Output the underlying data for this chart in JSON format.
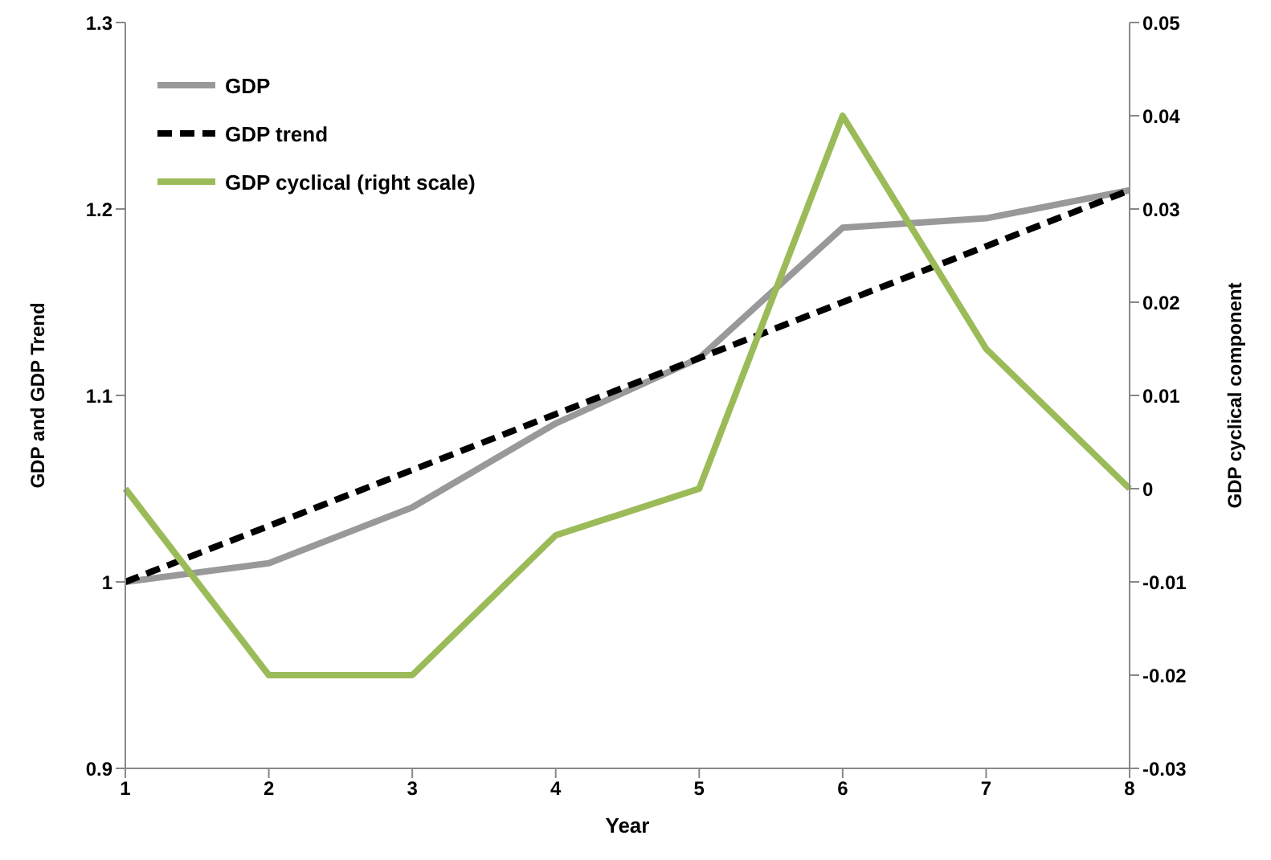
{
  "chart_data": {
    "type": "line",
    "xlabel": "Year",
    "ylabel": "GDP and GDP Trend",
    "y2label": "GDP cyclical component",
    "categories": [
      "1",
      "2",
      "3",
      "4",
      "5",
      "6",
      "7",
      "8"
    ],
    "series": [
      {
        "name": "GDP",
        "color": "#999999",
        "line_style": "solid",
        "values": [
          1.0,
          1.01,
          1.04,
          1.085,
          1.12,
          1.19,
          1.195,
          1.21
        ]
      },
      {
        "name": "GDP trend",
        "color": "#000000",
        "line_style": "dashed",
        "values": [
          1.0,
          1.03,
          1.06,
          1.09,
          1.12,
          1.15,
          1.18,
          1.21
        ]
      },
      {
        "name": "GDP cyclical (right scale)",
        "color": "#9bbb59",
        "line_style": "solid",
        "axis": "y2",
        "values": [
          0,
          -0.02,
          -0.02,
          -0.005,
          0,
          0.04,
          0.015,
          0
        ]
      }
    ],
    "ylim": [
      0.9,
      1.3
    ],
    "yticks": [
      0.9,
      1,
      1.1,
      1.2,
      1.3
    ],
    "y2lim": [
      -0.03,
      0.05
    ],
    "y2ticks": [
      -0.03,
      -0.02,
      -0.01,
      0,
      0.01,
      0.02,
      0.03,
      0.04,
      0.05
    ],
    "grid": false,
    "legend": "top left",
    "marker": "none"
  }
}
